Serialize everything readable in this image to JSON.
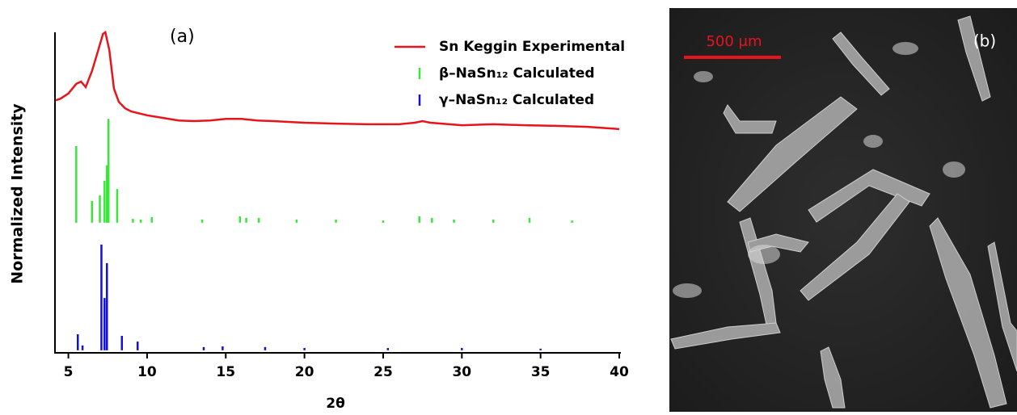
{
  "chart_data": {
    "type": "line",
    "panel_label": "(a)",
    "xlabel": "2θ",
    "ylabel": "Normalized Intensity",
    "xlim": [
      4.2,
      40
    ],
    "xticks": [
      5,
      10,
      15,
      20,
      25,
      30,
      35,
      40
    ],
    "ylim": [
      0,
      100
    ],
    "legend": "top-right",
    "series": [
      {
        "name": "Sn Keggin Experimental",
        "type": "line",
        "color": "#e8141b",
        "x": [
          4.2,
          4.5,
          5,
          5.5,
          5.8,
          6.1,
          6.5,
          6.9,
          7.2,
          7.35,
          7.6,
          7.9,
          8.2,
          8.6,
          9,
          10,
          11,
          12,
          13,
          14,
          15,
          16,
          17,
          18,
          20,
          22,
          24,
          26,
          27,
          27.5,
          28,
          30,
          32,
          34,
          36,
          38,
          40
        ],
        "values": [
          78.8,
          79.3,
          80.9,
          83.9,
          84.6,
          82.9,
          87.9,
          94.5,
          99.5,
          100,
          94.5,
          82.4,
          78.3,
          76.3,
          75.3,
          74.1,
          73.3,
          72.5,
          72.3,
          72.5,
          73.0,
          73.0,
          72.5,
          72.3,
          71.8,
          71.5,
          71.3,
          71.3,
          71.8,
          72.3,
          71.8,
          71.0,
          71.3,
          71.0,
          70.8,
          70.5,
          69.8
        ]
      },
      {
        "name": "β–NaSn₁₂ Calculated",
        "type": "stem",
        "color": "#39e639",
        "baseline": 40.6,
        "x": [
          5.5,
          6.5,
          7.0,
          7.3,
          7.45,
          7.55,
          8.1,
          9.1,
          9.6,
          10.3,
          13.5,
          15.9,
          16.3,
          17.1,
          19.5,
          22,
          25,
          27.3,
          28.1,
          29.5,
          32,
          34.3,
          37
        ],
        "values": [
          64.5,
          47.4,
          49.1,
          53.7,
          58.5,
          73.0,
          51.1,
          41.8,
          41.6,
          42.3,
          41.6,
          42.6,
          42.1,
          42.1,
          41.6,
          41.6,
          41.3,
          42.6,
          42.1,
          41.6,
          41.6,
          42.1,
          41.3
        ]
      },
      {
        "name": "γ–NaSn₁₂ Calculated",
        "type": "stem",
        "color": "#1010d8",
        "baseline": 0.8,
        "x": [
          5.6,
          5.9,
          7.1,
          7.3,
          7.45,
          8.4,
          9.4,
          13.6,
          14.8,
          17.5,
          20,
          25.3,
          30,
          35
        ],
        "values": [
          5.8,
          2.3,
          33.8,
          17.1,
          28.0,
          5.3,
          3.5,
          1.8,
          2.0,
          1.8,
          1.5,
          1.5,
          1.5,
          1.3
        ]
      }
    ]
  },
  "panel_b": {
    "label": "(b)",
    "scale_label": "500 μm"
  }
}
